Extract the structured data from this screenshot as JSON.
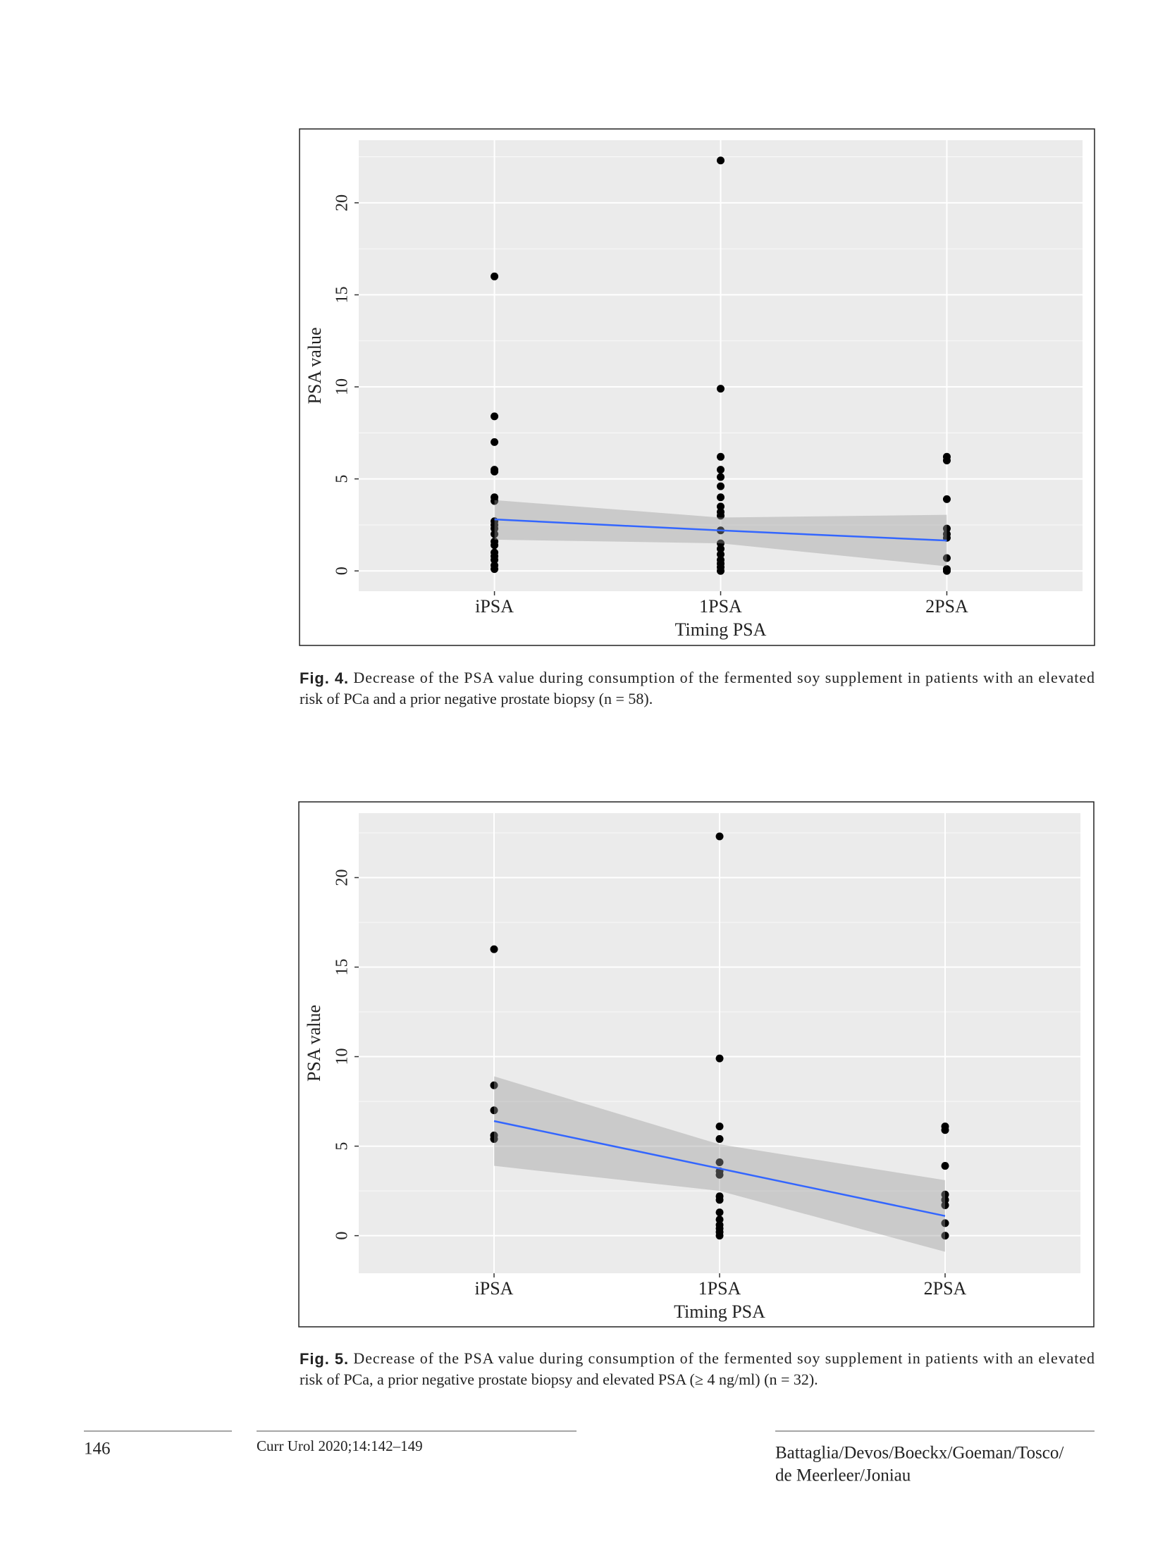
{
  "figures": [
    {
      "chart_data": {
        "type": "scatter",
        "categories": [
          "iPSA",
          "1PSA",
          "2PSA"
        ],
        "values": [
          [
            16,
            8.4,
            7.0,
            5.5,
            5.4,
            4.0,
            3.8,
            2.7,
            2.5,
            2.3,
            2.0,
            1.6,
            1.4,
            1.0,
            0.8,
            0.6,
            0.3,
            0.1
          ],
          [
            22.3,
            9.9,
            6.2,
            5.5,
            5.1,
            4.6,
            4.0,
            3.5,
            3.2,
            3.0,
            2.2,
            1.5,
            1.2,
            0.9,
            0.6,
            0.4,
            0.2,
            0.0
          ],
          [
            6.2,
            6.0,
            3.9,
            2.3,
            2.0,
            1.8,
            0.7,
            0.1,
            0.0
          ]
        ],
        "color": "#000000",
        "fit": {
          "values": [
            2.8,
            2.2,
            1.65
          ],
          "lower": [
            1.7,
            1.5,
            0.25
          ],
          "upper": [
            3.85,
            2.9,
            3.05
          ],
          "color": "#3366ff",
          "band_color": "#999999"
        },
        "xlabel": "Timing PSA",
        "ylabel": "PSA value",
        "ylim": [
          -1.1,
          23.4
        ],
        "yticks": [
          0,
          5,
          10,
          15,
          20
        ],
        "grid": true
      },
      "caption": {
        "label": "Fig. 4.",
        "lines": [
          "Decrease of the PSA value during consumption of the fermented soy supplement in patients with an elevated",
          "risk of PCa and a prior negative prostate biopsy (n = 58)."
        ]
      }
    },
    {
      "chart_data": {
        "type": "scatter",
        "categories": [
          "iPSA",
          "1PSA",
          "2PSA"
        ],
        "values": [
          [
            16,
            8.4,
            7.0,
            5.6,
            5.4
          ],
          [
            22.3,
            9.9,
            6.1,
            5.4,
            4.1,
            3.6,
            3.4,
            2.2,
            2.0,
            1.3,
            0.9,
            0.6,
            0.4,
            0.2,
            0.0
          ],
          [
            6.1,
            5.9,
            3.9,
            2.3,
            2.0,
            1.7,
            0.7,
            0.0
          ]
        ],
        "color": "#000000",
        "fit": {
          "values": [
            6.4,
            3.75,
            1.1
          ],
          "lower": [
            3.9,
            2.5,
            -0.9
          ],
          "upper": [
            8.9,
            5.1,
            3.1
          ],
          "color": "#3366ff",
          "band_color": "#999999"
        },
        "xlabel": "Timing PSA",
        "ylabel": "PSA value",
        "ylim": [
          -2.1,
          23.6
        ],
        "yticks": [
          0,
          5,
          10,
          15,
          20
        ],
        "grid": true
      },
      "caption": {
        "label": "Fig. 5.",
        "lines": [
          "Decrease of the PSA value during consumption of the fermented soy supplement in patients with an elevated",
          "risk of PCa, a prior negative prostate biopsy and elevated PSA (≥ 4 ng/ml) (n = 32)."
        ]
      }
    }
  ],
  "footer": {
    "page": "146",
    "journal": "Curr Urol 2020;14:142–149",
    "authors": [
      "Battaglia/Devos/Boeckx/Goeman/Tosco/",
      "de Meerleer/Joniau"
    ]
  }
}
